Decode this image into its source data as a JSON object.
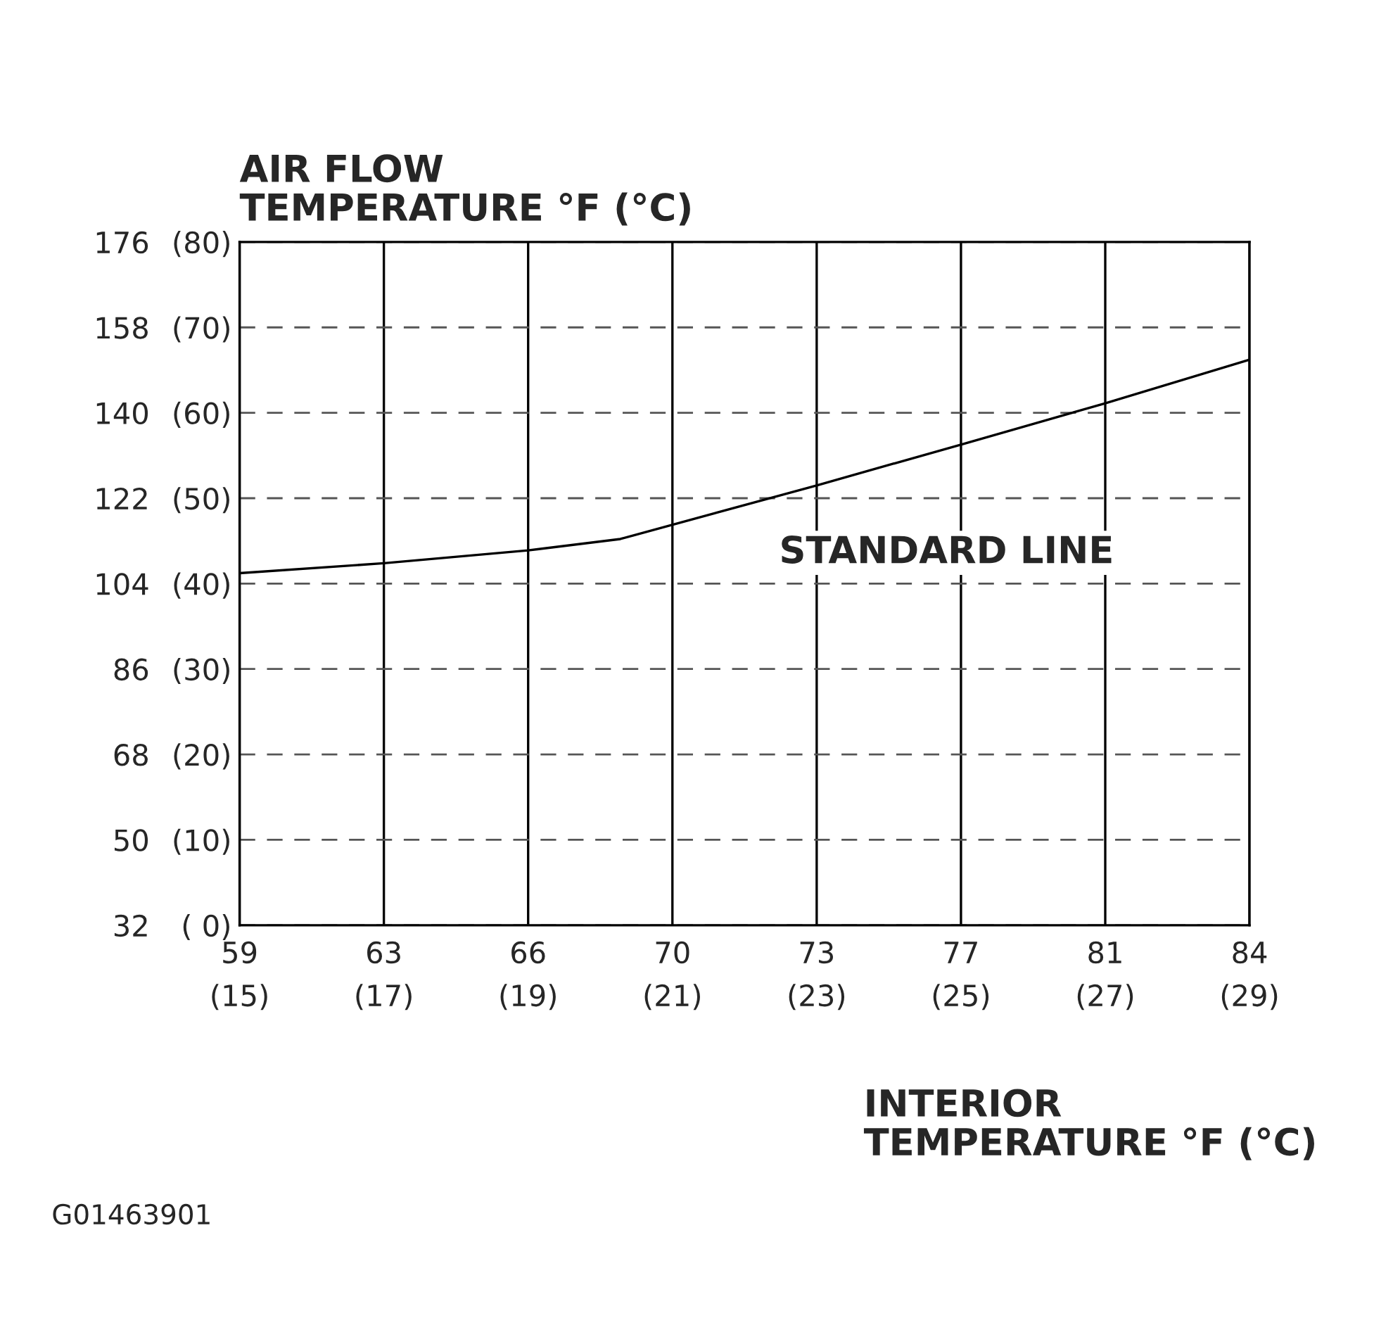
{
  "chart_data": {
    "type": "line",
    "y2label": "AIR FLOW\nTEMPERATURE °F (°C)",
    "xlabel": "INTERIOR\nTEMPERATURE °F (°C)",
    "xlim": [
      59,
      84.2
    ],
    "xticks": [
      59,
      {
        "value": 62.6,
        "label": "63"
      },
      {
        "value": 66.2,
        "label": "66"
      },
      {
        "value": 69.8,
        "label": "70"
      },
      {
        "value": 73.4,
        "label": "73"
      },
      77,
      {
        "value": 80.6,
        "label": "81"
      },
      {
        "value": 84.2,
        "label": "84"
      }
    ],
    "x2lim": [
      15,
      29
    ],
    "x2ticks": [
      {
        "value": 15,
        "label": "(15)"
      },
      {
        "value": 17,
        "label": "(17)"
      },
      {
        "value": 19,
        "label": "(19)"
      },
      {
        "value": 21,
        "label": "(21)"
      },
      {
        "value": 23,
        "label": "(23)"
      },
      {
        "value": 25,
        "label": "(25)"
      },
      {
        "value": 27,
        "label": "(27)"
      },
      {
        "value": 29,
        "label": "(29)"
      }
    ],
    "ylim": [
      32,
      176
    ],
    "yticks": [
      32,
      50,
      68,
      86,
      104,
      122,
      140,
      158,
      176
    ],
    "y2lim": [
      0,
      80
    ],
    "y2ticks": [
      {
        "value": 0,
        "label": "( 0)"
      },
      {
        "value": 10,
        "label": "(10)"
      },
      {
        "value": 20,
        "label": "(20)"
      },
      {
        "value": 30,
        "label": "(30)"
      },
      {
        "value": 40,
        "label": "(40)"
      },
      {
        "value": 50,
        "label": "(50)"
      },
      {
        "value": 60,
        "label": "(60)"
      },
      {
        "value": 70,
        "label": "(70)"
      },
      {
        "value": 80,
        "label": "(80)"
      }
    ],
    "x": [
      59,
      62.6,
      66.2,
      68.5,
      73.4,
      77,
      80.6,
      84.2
    ],
    "series": [
      {
        "color": "#000000",
        "values": [
          106.2,
          108.3,
          111.0,
          113.4,
          124.7,
          133.3,
          142.0,
          151.2
        ]
      }
    ],
    "grid": true,
    "line_style": "solid",
    "annotations": [
      "STANDARD LINE",
      "G01463901"
    ]
  }
}
